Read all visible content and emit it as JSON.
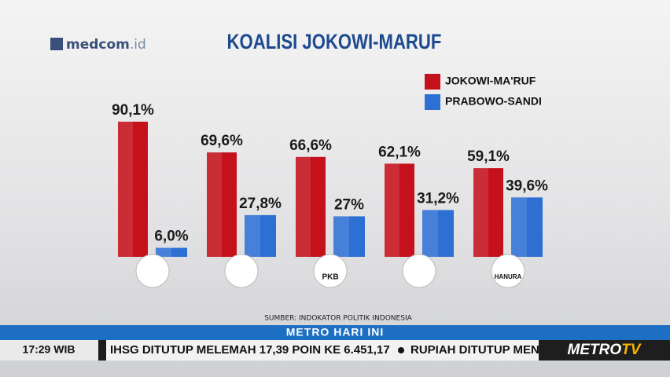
{
  "chart_data": {
    "type": "bar",
    "title": "KOALISI JOKOWI-MARUF",
    "categories": [
      null,
      null,
      "PKB",
      null,
      "HANURA"
    ],
    "series": [
      {
        "name": "JOKOWI-MA'RUF",
        "color": "#c4111c",
        "values": [
          90.1,
          69.6,
          66.6,
          62.1,
          59.1
        ],
        "value_labels": [
          "90,1%",
          "69,6%",
          "66,6%",
          "62,1%",
          "59,1%"
        ]
      },
      {
        "name": "PRABOWO-SANDI",
        "color": "#2d6fd3",
        "values": [
          6.0,
          27.8,
          27,
          31.2,
          39.6
        ],
        "value_labels": [
          "6,0%",
          "27,8%",
          "27%",
          "31,2%",
          "39,6%"
        ]
      }
    ],
    "source": "SUMBER: INDOKATOR POLITIK INDONESIA"
  },
  "broadcast": {
    "logo": "medcom",
    "logo_suffix": ".id",
    "program": "METRO HARI INI",
    "time": "17:29 WIB",
    "ticker": [
      "IHSG DITUTUP MELEMAH 17,39 POIN KE 6.451,17",
      "RUPIAH DITUTUP MEN"
    ],
    "channel": "METRO",
    "channel_suffix": "TV"
  }
}
